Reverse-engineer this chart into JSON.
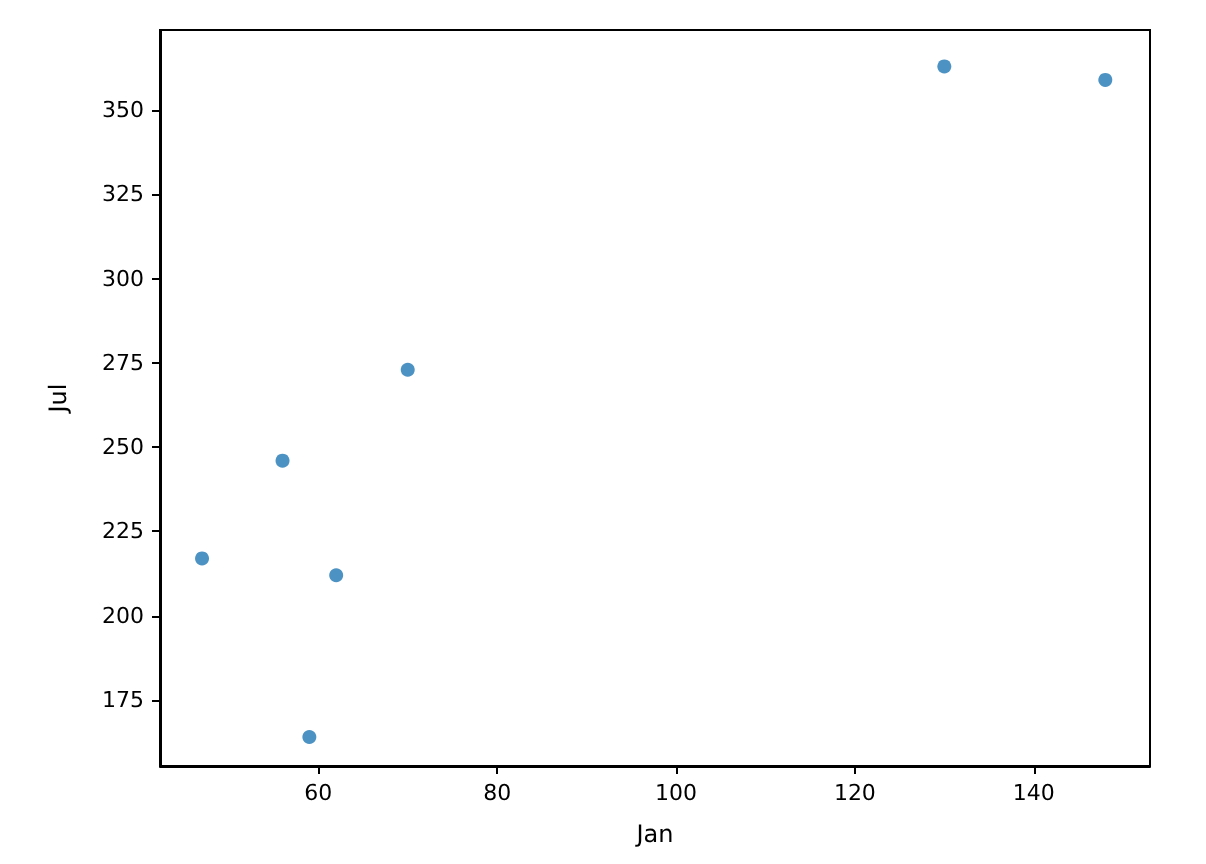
{
  "chart_data": {
    "type": "scatter",
    "xlabel": "Jan",
    "ylabel": "Jul",
    "x": [
      47,
      56,
      59,
      62,
      70,
      130,
      148
    ],
    "series": [
      {
        "color": "#1f77b4",
        "values": [
          217,
          246,
          164,
          212,
          273,
          363,
          359
        ]
      }
    ],
    "xlim": [
      42.3,
      153
    ],
    "ylim": [
      155.4,
      373.8
    ],
    "xticks": [
      60,
      80,
      100,
      120,
      140
    ],
    "yticks": [
      175,
      200,
      225,
      250,
      275,
      300,
      325,
      350
    ],
    "marker": "circle"
  }
}
